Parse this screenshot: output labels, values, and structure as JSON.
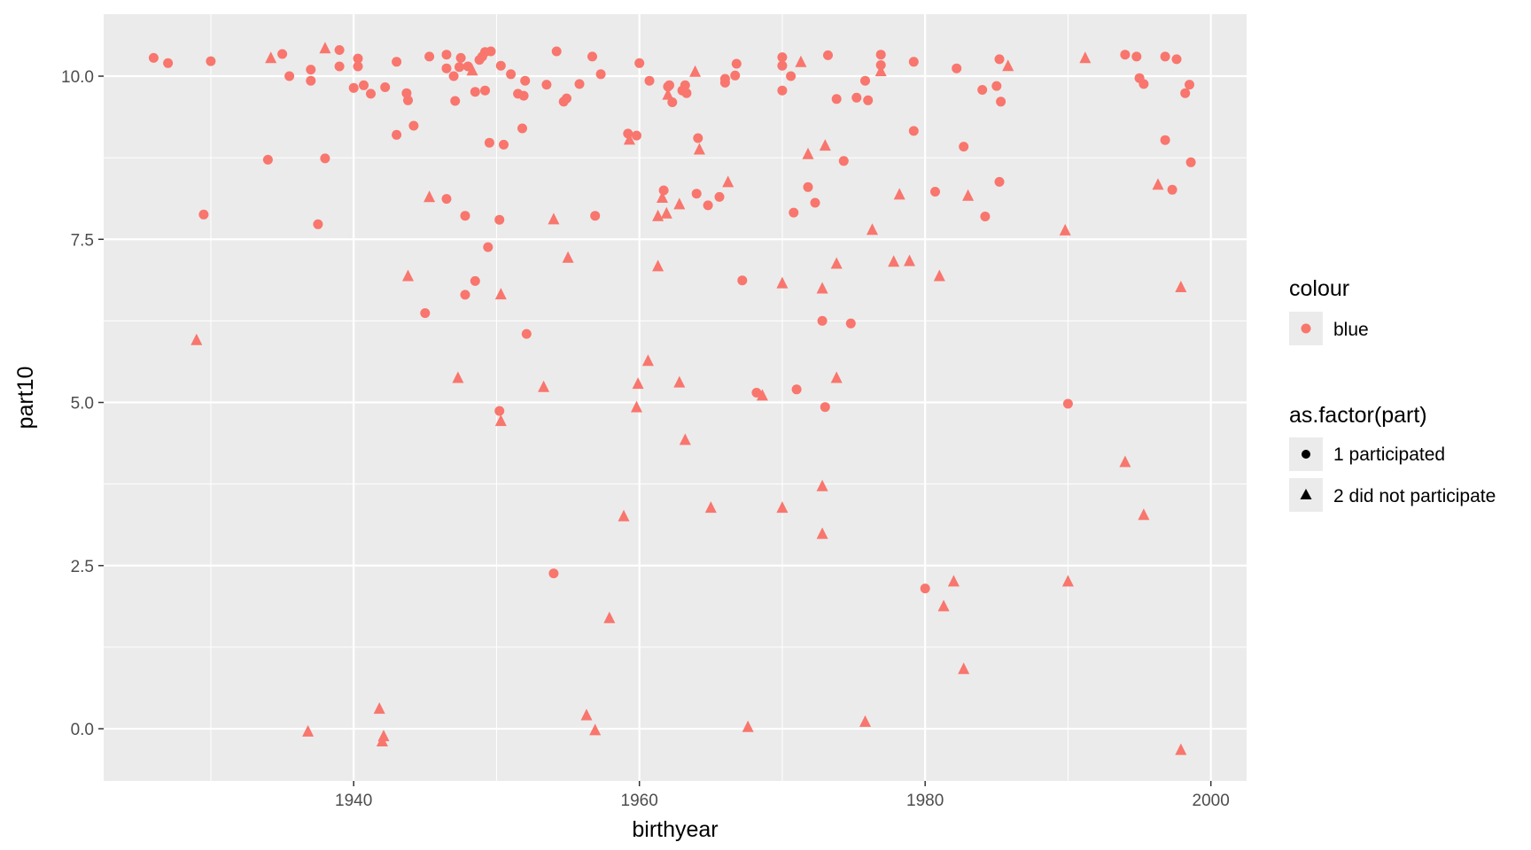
{
  "chart_data": {
    "type": "scatter",
    "xlabel": "birthyear",
    "ylabel": "part10",
    "xlim": [
      1922.5,
      2002.5
    ],
    "ylim": [
      -0.8,
      10.95
    ],
    "x_ticks": [
      1940,
      1960,
      1980,
      2000
    ],
    "x_tick_labels": [
      "1940",
      "1960",
      "1980",
      "2000"
    ],
    "y_ticks": [
      0.0,
      2.5,
      5.0,
      7.5,
      10.0
    ],
    "y_tick_labels": [
      "0.0",
      "2.5",
      "5.0",
      "7.5",
      "10.0"
    ],
    "grid": true,
    "point_color": "#F8766D",
    "panel_background": "#EBEBEB",
    "grid_color": "#FFFFFF",
    "legend_position": "right",
    "legends": [
      {
        "title": "colour",
        "entries": [
          {
            "label": "blue",
            "shape": "circle",
            "color": "#F8766D"
          }
        ]
      },
      {
        "title": "as.factor(part)",
        "entries": [
          {
            "label": "1 participated",
            "shape": "circle",
            "color": "#000000"
          },
          {
            "label": "2 did not participate",
            "shape": "triangle",
            "color": "#000000"
          }
        ]
      }
    ],
    "series": [
      {
        "name": "1 participated",
        "shape": "circle",
        "points": [
          [
            1926.0,
            10.28
          ],
          [
            1927.0,
            10.2
          ],
          [
            1929.5,
            7.88
          ],
          [
            1930.0,
            10.23
          ],
          [
            1934.0,
            8.72
          ],
          [
            1935.0,
            10.34
          ],
          [
            1935.5,
            10.0
          ],
          [
            1937.0,
            10.1
          ],
          [
            1937.0,
            9.93
          ],
          [
            1937.5,
            7.73
          ],
          [
            1938.0,
            8.74
          ],
          [
            1939.0,
            10.15
          ],
          [
            1939.0,
            10.4
          ],
          [
            1940.0,
            9.82
          ],
          [
            1940.3,
            10.27
          ],
          [
            1940.3,
            10.15
          ],
          [
            1940.7,
            9.86
          ],
          [
            1941.2,
            9.73
          ],
          [
            1942.2,
            9.83
          ],
          [
            1943.0,
            9.1
          ],
          [
            1943.0,
            10.22
          ],
          [
            1943.7,
            9.74
          ],
          [
            1943.8,
            9.63
          ],
          [
            1944.2,
            9.24
          ],
          [
            1945.0,
            6.37
          ],
          [
            1945.3,
            10.3
          ],
          [
            1946.5,
            8.12
          ],
          [
            1946.5,
            10.12
          ],
          [
            1946.5,
            10.33
          ],
          [
            1947.0,
            10.0
          ],
          [
            1947.1,
            9.62
          ],
          [
            1947.4,
            10.14
          ],
          [
            1947.5,
            10.28
          ],
          [
            1947.8,
            6.65
          ],
          [
            1947.8,
            7.86
          ],
          [
            1948.0,
            10.15
          ],
          [
            1948.5,
            9.76
          ],
          [
            1948.5,
            6.86
          ],
          [
            1948.8,
            10.25
          ],
          [
            1949.0,
            10.3
          ],
          [
            1949.2,
            10.37
          ],
          [
            1949.2,
            9.78
          ],
          [
            1949.4,
            7.38
          ],
          [
            1949.5,
            8.98
          ],
          [
            1949.6,
            10.38
          ],
          [
            1950.2,
            4.87
          ],
          [
            1950.2,
            7.8
          ],
          [
            1950.3,
            10.16
          ],
          [
            1950.5,
            8.95
          ],
          [
            1951.0,
            10.03
          ],
          [
            1951.5,
            9.73
          ],
          [
            1951.8,
            9.2
          ],
          [
            1951.9,
            9.7
          ],
          [
            1952.0,
            9.93
          ],
          [
            1952.1,
            6.05
          ],
          [
            1953.5,
            9.87
          ],
          [
            1954.0,
            2.38
          ],
          [
            1954.2,
            10.38
          ],
          [
            1954.7,
            9.61
          ],
          [
            1954.9,
            9.66
          ],
          [
            1955.8,
            9.88
          ],
          [
            1956.7,
            10.3
          ],
          [
            1956.9,
            7.86
          ],
          [
            1957.3,
            10.03
          ],
          [
            1959.2,
            9.12
          ],
          [
            1959.8,
            9.09
          ],
          [
            1960.0,
            10.2
          ],
          [
            1960.7,
            9.93
          ],
          [
            1961.7,
            8.25
          ],
          [
            1962.0,
            9.84
          ],
          [
            1962.1,
            9.86
          ],
          [
            1962.3,
            9.6
          ],
          [
            1963.0,
            9.78
          ],
          [
            1963.2,
            9.86
          ],
          [
            1963.3,
            9.74
          ],
          [
            1964.0,
            8.2
          ],
          [
            1964.1,
            9.05
          ],
          [
            1964.8,
            8.02
          ],
          [
            1965.6,
            8.15
          ],
          [
            1966.0,
            9.96
          ],
          [
            1966.0,
            9.9
          ],
          [
            1966.7,
            10.01
          ],
          [
            1966.8,
            10.19
          ],
          [
            1967.2,
            6.87
          ],
          [
            1968.2,
            5.15
          ],
          [
            1970.0,
            10.29
          ],
          [
            1970.0,
            10.16
          ],
          [
            1970.0,
            9.78
          ],
          [
            1970.6,
            10.0
          ],
          [
            1970.8,
            7.91
          ],
          [
            1971.0,
            5.2
          ],
          [
            1971.8,
            8.3
          ],
          [
            1972.3,
            8.06
          ],
          [
            1972.8,
            6.25
          ],
          [
            1973.0,
            4.93
          ],
          [
            1973.2,
            10.32
          ],
          [
            1973.8,
            9.65
          ],
          [
            1974.3,
            8.7
          ],
          [
            1974.8,
            6.21
          ],
          [
            1975.2,
            9.67
          ],
          [
            1975.8,
            9.93
          ],
          [
            1976.0,
            9.63
          ],
          [
            1976.9,
            10.17
          ],
          [
            1976.9,
            10.33
          ],
          [
            1979.2,
            10.22
          ],
          [
            1979.2,
            9.16
          ],
          [
            1980.0,
            2.15
          ],
          [
            1980.7,
            8.23
          ],
          [
            1982.2,
            10.12
          ],
          [
            1982.7,
            8.92
          ],
          [
            1984.0,
            9.79
          ],
          [
            1984.2,
            7.85
          ],
          [
            1985.0,
            9.85
          ],
          [
            1985.2,
            8.38
          ],
          [
            1985.2,
            10.26
          ],
          [
            1985.3,
            9.61
          ],
          [
            1990.0,
            4.98
          ],
          [
            1994.0,
            10.33
          ],
          [
            1994.8,
            10.3
          ],
          [
            1995.0,
            9.97
          ],
          [
            1995.3,
            9.88
          ],
          [
            1996.8,
            9.02
          ],
          [
            1996.8,
            10.3
          ],
          [
            1997.3,
            8.26
          ],
          [
            1997.6,
            10.26
          ],
          [
            1998.2,
            9.74
          ],
          [
            1998.5,
            9.87
          ],
          [
            1998.6,
            8.68
          ]
        ]
      },
      {
        "name": "2 did not participate",
        "shape": "triangle",
        "points": [
          [
            1929.0,
            5.95
          ],
          [
            1934.2,
            10.27
          ],
          [
            1936.8,
            -0.05
          ],
          [
            1938.0,
            10.42
          ],
          [
            1941.8,
            0.3
          ],
          [
            1942.0,
            -0.2
          ],
          [
            1942.1,
            -0.12
          ],
          [
            1943.8,
            6.93
          ],
          [
            1945.3,
            8.14
          ],
          [
            1947.3,
            5.37
          ],
          [
            1948.3,
            10.08
          ],
          [
            1950.3,
            4.71
          ],
          [
            1950.3,
            6.65
          ],
          [
            1953.3,
            5.23
          ],
          [
            1954.0,
            7.8
          ],
          [
            1955.0,
            7.21
          ],
          [
            1956.3,
            0.2
          ],
          [
            1956.9,
            -0.03
          ],
          [
            1957.9,
            1.69
          ],
          [
            1958.9,
            3.25
          ],
          [
            1959.3,
            9.02
          ],
          [
            1959.8,
            4.92
          ],
          [
            1959.9,
            5.28
          ],
          [
            1960.6,
            5.63
          ],
          [
            1961.3,
            7.08
          ],
          [
            1961.3,
            7.85
          ],
          [
            1961.6,
            8.13
          ],
          [
            1961.9,
            7.89
          ],
          [
            1962.0,
            9.71
          ],
          [
            1962.8,
            8.03
          ],
          [
            1962.8,
            5.3
          ],
          [
            1963.2,
            4.42
          ],
          [
            1963.9,
            10.06
          ],
          [
            1964.2,
            8.87
          ],
          [
            1965.0,
            3.38
          ],
          [
            1966.2,
            8.37
          ],
          [
            1967.6,
            0.02
          ],
          [
            1968.6,
            5.1
          ],
          [
            1970.0,
            3.38
          ],
          [
            1970.0,
            6.82
          ],
          [
            1971.3,
            10.21
          ],
          [
            1971.8,
            8.8
          ],
          [
            1972.8,
            3.71
          ],
          [
            1972.8,
            6.74
          ],
          [
            1972.8,
            2.98
          ],
          [
            1973.0,
            8.93
          ],
          [
            1973.8,
            5.37
          ],
          [
            1973.8,
            7.12
          ],
          [
            1975.8,
            0.1
          ],
          [
            1976.3,
            7.64
          ],
          [
            1976.9,
            10.07
          ],
          [
            1977.8,
            7.15
          ],
          [
            1978.2,
            8.18
          ],
          [
            1978.9,
            7.16
          ],
          [
            1981.0,
            6.93
          ],
          [
            1981.3,
            1.87
          ],
          [
            1982.0,
            2.25
          ],
          [
            1982.7,
            0.91
          ],
          [
            1983.0,
            8.16
          ],
          [
            1985.8,
            10.15
          ],
          [
            1989.8,
            7.63
          ],
          [
            1990.0,
            2.25
          ],
          [
            1991.2,
            10.27
          ],
          [
            1994.0,
            4.08
          ],
          [
            1995.3,
            3.27
          ],
          [
            1996.3,
            8.33
          ],
          [
            1997.9,
            6.76
          ],
          [
            1997.9,
            -0.33
          ]
        ]
      }
    ]
  }
}
